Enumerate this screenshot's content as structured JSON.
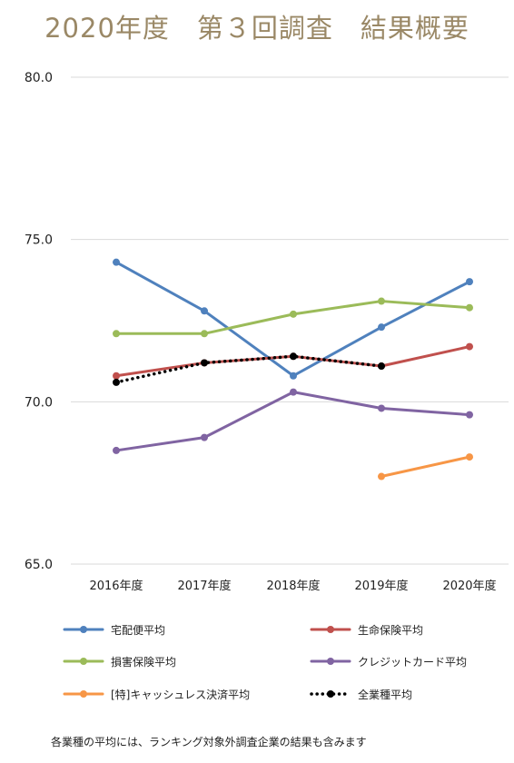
{
  "title": "2020年度　第３回調査　結果概要",
  "footnote": "各業種の平均には、ランキング対象外調査企業の結果も含みます",
  "chart_data": {
    "type": "line",
    "categories": [
      "2016年度",
      "2017年度",
      "2018年度",
      "2019年度",
      "2020年度"
    ],
    "ylim": [
      65.0,
      80.0
    ],
    "yticks": [
      "65.0",
      "70.0",
      "75.0",
      "80.0"
    ],
    "grid": true,
    "legend_position": "bottom",
    "series": [
      {
        "name": "宅配便平均",
        "color": "#4f81bd",
        "dash": false,
        "values": [
          74.3,
          72.8,
          70.8,
          72.3,
          73.7
        ]
      },
      {
        "name": "生命保険平均",
        "color": "#c0504d",
        "dash": false,
        "values": [
          70.8,
          71.2,
          71.4,
          71.1,
          71.7
        ]
      },
      {
        "name": "損害保険平均",
        "color": "#9bbb59",
        "dash": false,
        "values": [
          72.1,
          72.1,
          72.7,
          73.1,
          72.9
        ]
      },
      {
        "name": "クレジットカード平均",
        "color": "#8064a2",
        "dash": false,
        "values": [
          68.5,
          68.9,
          70.3,
          69.8,
          69.6
        ]
      },
      {
        "name": "[特]キャッシュレス決済平均",
        "color": "#f79646",
        "dash": false,
        "values": [
          null,
          null,
          null,
          67.7,
          68.3
        ]
      },
      {
        "name": "全業種平均",
        "color": "#000000",
        "dash": true,
        "values": [
          70.6,
          71.2,
          71.4,
          71.1,
          null
        ]
      }
    ]
  }
}
